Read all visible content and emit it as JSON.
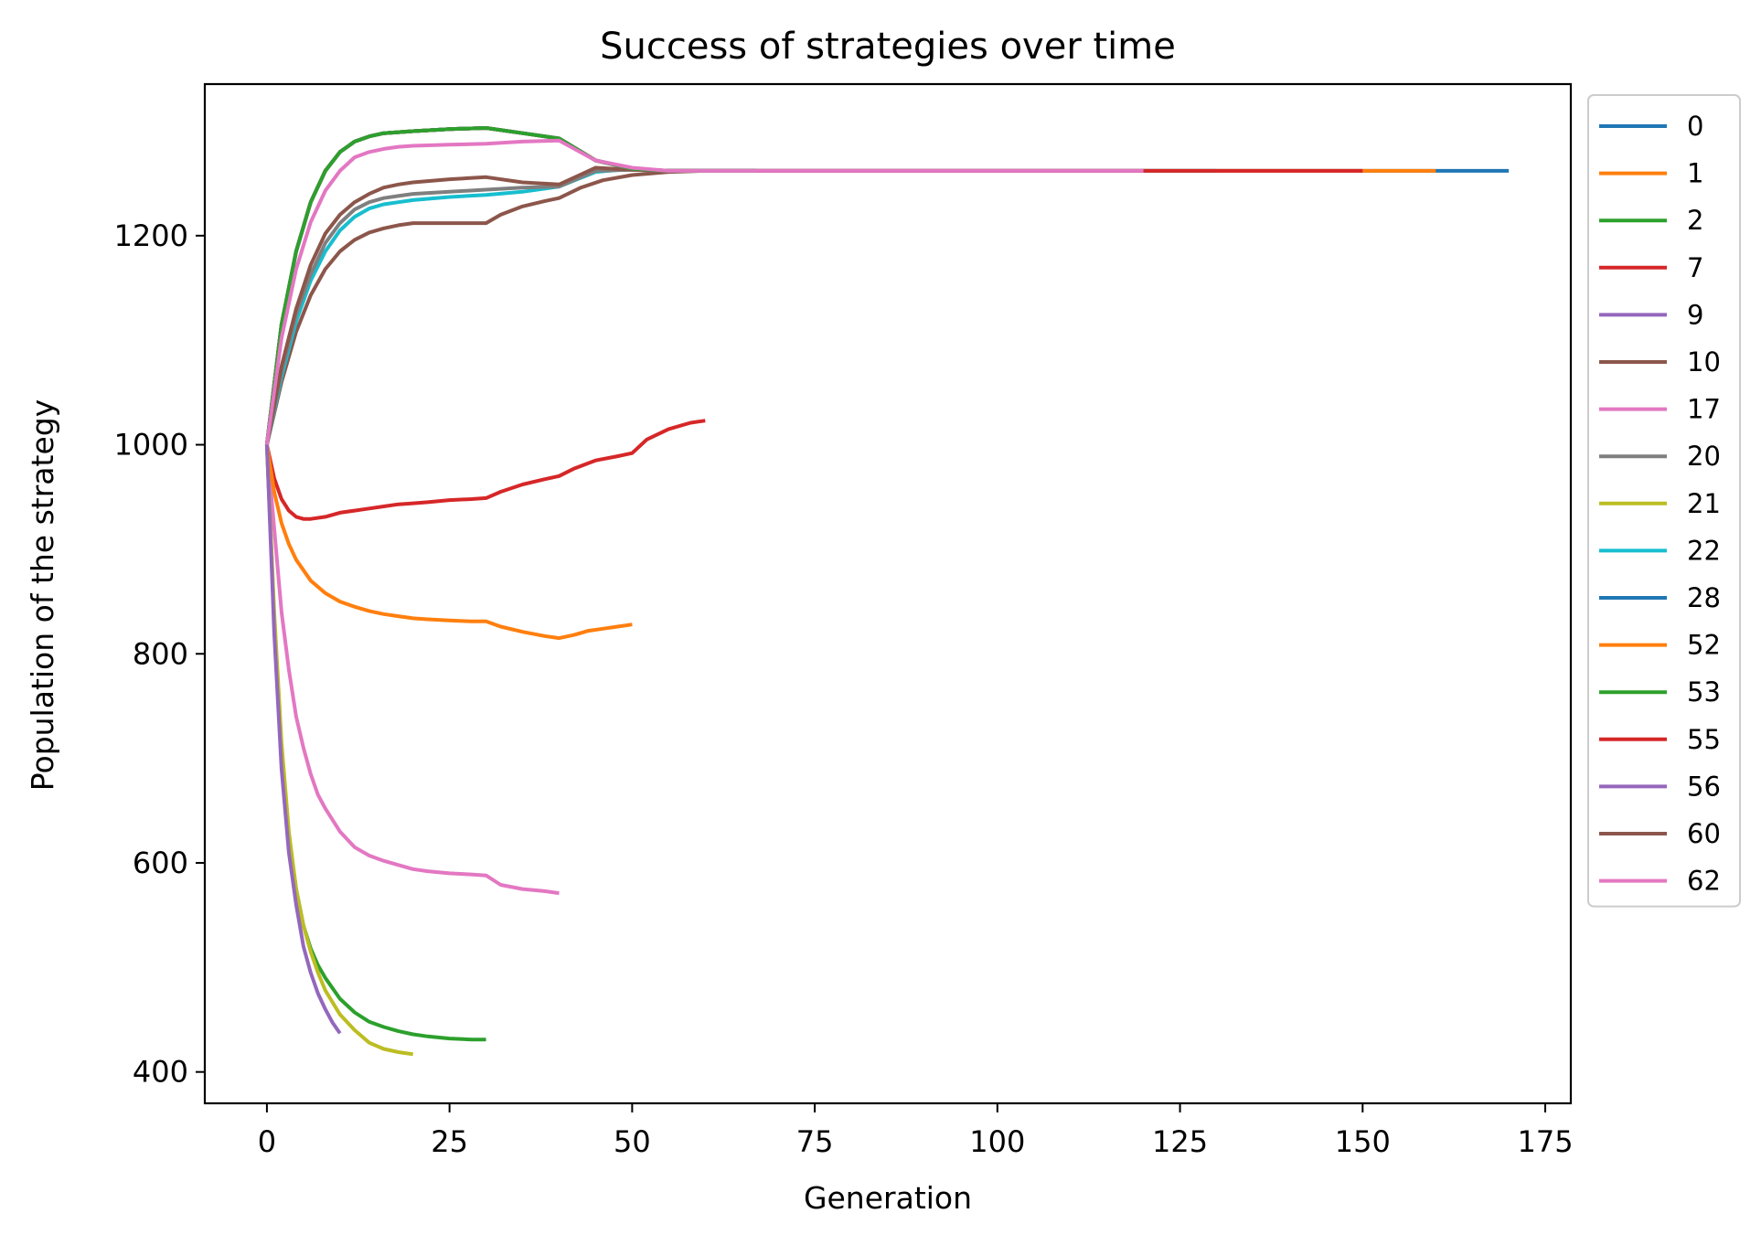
{
  "chart_data": {
    "type": "line",
    "title": "Success of strategies over time",
    "xlabel": "Generation",
    "ylabel": "Population of the strategy",
    "xlim": [
      -8.5,
      178.5
    ],
    "ylim": [
      370,
      1345
    ],
    "xticks": [
      0,
      25,
      50,
      75,
      100,
      125,
      150,
      175
    ],
    "yticks": [
      400,
      600,
      800,
      1000,
      1200
    ],
    "grid": false,
    "legend_position": "outside-right-top",
    "series": [
      {
        "name": "0",
        "color": "#1f77b4",
        "x": [
          0,
          2,
          4,
          6,
          8,
          10,
          12,
          14,
          16,
          18,
          20,
          25,
          30,
          35,
          40,
          45,
          50,
          55,
          60,
          170
        ],
        "y": [
          1000,
          1115,
          1185,
          1232,
          1262,
          1280,
          1290,
          1295,
          1298,
          1299,
          1300,
          1302,
          1303,
          1298,
          1293,
          1272,
          1264,
          1262,
          1262,
          1262
        ]
      },
      {
        "name": "1",
        "color": "#ff7f0e",
        "x": [
          0,
          2,
          4,
          6,
          8,
          10,
          12,
          14,
          16,
          18,
          20,
          25,
          30,
          35,
          40,
          45,
          50,
          55,
          60,
          160
        ],
        "y": [
          1000,
          1115,
          1185,
          1232,
          1262,
          1280,
          1290,
          1295,
          1298,
          1299,
          1300,
          1302,
          1303,
          1298,
          1293,
          1272,
          1264,
          1262,
          1262,
          1262
        ]
      },
      {
        "name": "2",
        "color": "#2ca02c",
        "x": [
          0,
          2,
          4,
          6,
          8,
          10,
          12,
          14,
          16,
          18,
          20,
          25,
          30,
          35,
          40,
          45,
          50,
          55,
          60,
          67
        ],
        "y": [
          1000,
          1115,
          1185,
          1232,
          1262,
          1280,
          1290,
          1295,
          1298,
          1299,
          1300,
          1302,
          1303,
          1298,
          1293,
          1272,
          1264,
          1262,
          1262,
          1262
        ]
      },
      {
        "name": "7",
        "color": "#d62728",
        "x": [
          0,
          2,
          4,
          6,
          8,
          10,
          12,
          14,
          16,
          18,
          20,
          25,
          30,
          35,
          40,
          45,
          50,
          55,
          60,
          150
        ],
        "y": [
          1000,
          1115,
          1185,
          1232,
          1262,
          1280,
          1290,
          1295,
          1298,
          1299,
          1300,
          1302,
          1303,
          1298,
          1293,
          1272,
          1264,
          1262,
          1262,
          1262
        ]
      },
      {
        "name": "9",
        "color": "#9467bd",
        "x": [
          0,
          1,
          2,
          3,
          4,
          5,
          6,
          7,
          8,
          9,
          10
        ],
        "y": [
          1000,
          820,
          690,
          610,
          560,
          520,
          495,
          475,
          460,
          447,
          437
        ]
      },
      {
        "name": "10",
        "color": "#8c564b",
        "x": [
          0,
          2,
          4,
          6,
          8,
          10,
          12,
          14,
          16,
          18,
          20,
          25,
          30,
          35,
          40,
          45,
          50,
          55,
          60,
          67
        ],
        "y": [
          1000,
          1075,
          1130,
          1172,
          1202,
          1220,
          1232,
          1240,
          1246,
          1249,
          1251,
          1254,
          1256,
          1251,
          1249,
          1265,
          1263,
          1262,
          1262,
          1262
        ]
      },
      {
        "name": "17",
        "color": "#e377c2",
        "x": [
          0,
          2,
          4,
          6,
          8,
          10,
          12,
          14,
          16,
          18,
          20,
          25,
          30,
          35,
          40,
          45,
          50,
          55,
          60,
          120
        ],
        "y": [
          1000,
          1102,
          1168,
          1213,
          1243,
          1262,
          1275,
          1280,
          1283,
          1285,
          1286,
          1287,
          1288,
          1290,
          1291,
          1272,
          1265,
          1262,
          1262,
          1262
        ]
      },
      {
        "name": "20",
        "color": "#7f7f7f",
        "x": [
          0,
          2,
          4,
          6,
          8,
          10,
          12,
          14,
          16,
          18,
          20,
          25,
          30,
          35,
          40,
          45,
          50,
          55,
          60,
          67
        ],
        "y": [
          1000,
          1070,
          1125,
          1163,
          1193,
          1212,
          1225,
          1232,
          1236,
          1238,
          1240,
          1242,
          1244,
          1246,
          1247,
          1262,
          1263,
          1262,
          1262,
          1262
        ]
      },
      {
        "name": "21",
        "color": "#bcbd22",
        "x": [
          0,
          1,
          2,
          3,
          4,
          5,
          6,
          7,
          8,
          10,
          12,
          14,
          16,
          18,
          20
        ],
        "y": [
          1000,
          840,
          715,
          630,
          575,
          540,
          515,
          495,
          478,
          455,
          440,
          428,
          422,
          419,
          417
        ]
      },
      {
        "name": "22",
        "color": "#17becf",
        "x": [
          0,
          2,
          4,
          6,
          8,
          10,
          12,
          14,
          16,
          18,
          20,
          25,
          30,
          35,
          40,
          45,
          50,
          55,
          60,
          67
        ],
        "y": [
          1000,
          1065,
          1118,
          1157,
          1185,
          1205,
          1218,
          1226,
          1230,
          1232,
          1234,
          1237,
          1239,
          1242,
          1247,
          1261,
          1264,
          1262,
          1262,
          1262
        ]
      },
      {
        "name": "28",
        "color": "#1f77b4",
        "x": [
          0,
          2,
          4,
          6,
          8,
          10,
          12,
          14,
          16,
          18,
          20,
          25,
          30,
          35,
          40,
          45,
          50,
          55,
          60,
          130
        ],
        "y": [
          1000,
          1115,
          1185,
          1232,
          1262,
          1280,
          1290,
          1295,
          1298,
          1299,
          1300,
          1302,
          1303,
          1298,
          1293,
          1272,
          1264,
          1262,
          1262,
          1262
        ]
      },
      {
        "name": "52",
        "color": "#ff7f0e",
        "x": [
          0,
          1,
          2,
          3,
          4,
          6,
          8,
          10,
          12,
          14,
          16,
          18,
          20,
          22,
          25,
          28,
          30,
          32,
          35,
          38,
          40,
          42,
          44,
          46,
          48,
          50
        ],
        "y": [
          1000,
          955,
          925,
          905,
          890,
          870,
          858,
          850,
          845,
          841,
          838,
          836,
          834,
          833,
          832,
          831,
          831,
          826,
          821,
          817,
          815,
          818,
          822,
          824,
          826,
          828
        ]
      },
      {
        "name": "53",
        "color": "#2ca02c",
        "x": [
          0,
          1,
          2,
          3,
          4,
          5,
          6,
          7,
          8,
          10,
          12,
          14,
          16,
          18,
          20,
          22,
          25,
          28,
          30
        ],
        "y": [
          1000,
          835,
          705,
          625,
          575,
          540,
          518,
          502,
          490,
          470,
          457,
          448,
          443,
          439,
          436,
          434,
          432,
          431,
          431
        ]
      },
      {
        "name": "55",
        "color": "#d62728",
        "x": [
          0,
          1,
          2,
          3,
          4,
          5,
          6,
          8,
          10,
          12,
          14,
          16,
          18,
          20,
          22,
          25,
          28,
          30,
          32,
          35,
          38,
          40,
          42,
          45,
          48,
          50,
          52,
          55,
          58,
          60
        ],
        "y": [
          1000,
          968,
          948,
          937,
          931,
          929,
          929,
          931,
          935,
          937,
          939,
          941,
          943,
          944,
          945,
          947,
          948,
          949,
          955,
          962,
          967,
          970,
          977,
          985,
          989,
          992,
          1005,
          1015,
          1021,
          1023
        ]
      },
      {
        "name": "56",
        "color": "#9467bd",
        "x": [
          0,
          2,
          4,
          6,
          8,
          10,
          12,
          14,
          16,
          18,
          20,
          25,
          30,
          35,
          40,
          45,
          50,
          55,
          60,
          67
        ],
        "y": [
          1000,
          1115,
          1185,
          1232,
          1262,
          1280,
          1290,
          1295,
          1298,
          1299,
          1300,
          1302,
          1303,
          1298,
          1293,
          1272,
          1264,
          1262,
          1262,
          1262
        ]
      },
      {
        "name": "60",
        "color": "#8c564b",
        "x": [
          0,
          2,
          4,
          6,
          8,
          10,
          12,
          14,
          16,
          18,
          20,
          25,
          30,
          32,
          35,
          38,
          40,
          43,
          46,
          50,
          55,
          60,
          67
        ],
        "y": [
          1000,
          1060,
          1108,
          1143,
          1168,
          1185,
          1196,
          1203,
          1207,
          1210,
          1212,
          1212,
          1212,
          1220,
          1228,
          1233,
          1236,
          1246,
          1253,
          1258,
          1261,
          1262,
          1262
        ]
      },
      {
        "name": "62",
        "color": "#e377c2",
        "x": [
          0,
          1,
          2,
          3,
          4,
          5,
          6,
          7,
          8,
          10,
          12,
          14,
          16,
          18,
          20,
          22,
          25,
          28,
          30,
          32,
          35,
          38,
          40
        ],
        "y": [
          1000,
          920,
          840,
          785,
          740,
          710,
          685,
          665,
          652,
          630,
          615,
          607,
          602,
          598,
          594,
          592,
          590,
          589,
          588,
          579,
          575,
          573,
          571
        ]
      }
    ],
    "draw_order": [
      "62",
      "60",
      "55",
      "53",
      "52",
      "22",
      "21",
      "20",
      "10",
      "9",
      "0",
      "1",
      "28",
      "7",
      "56",
      "2",
      "17"
    ]
  }
}
